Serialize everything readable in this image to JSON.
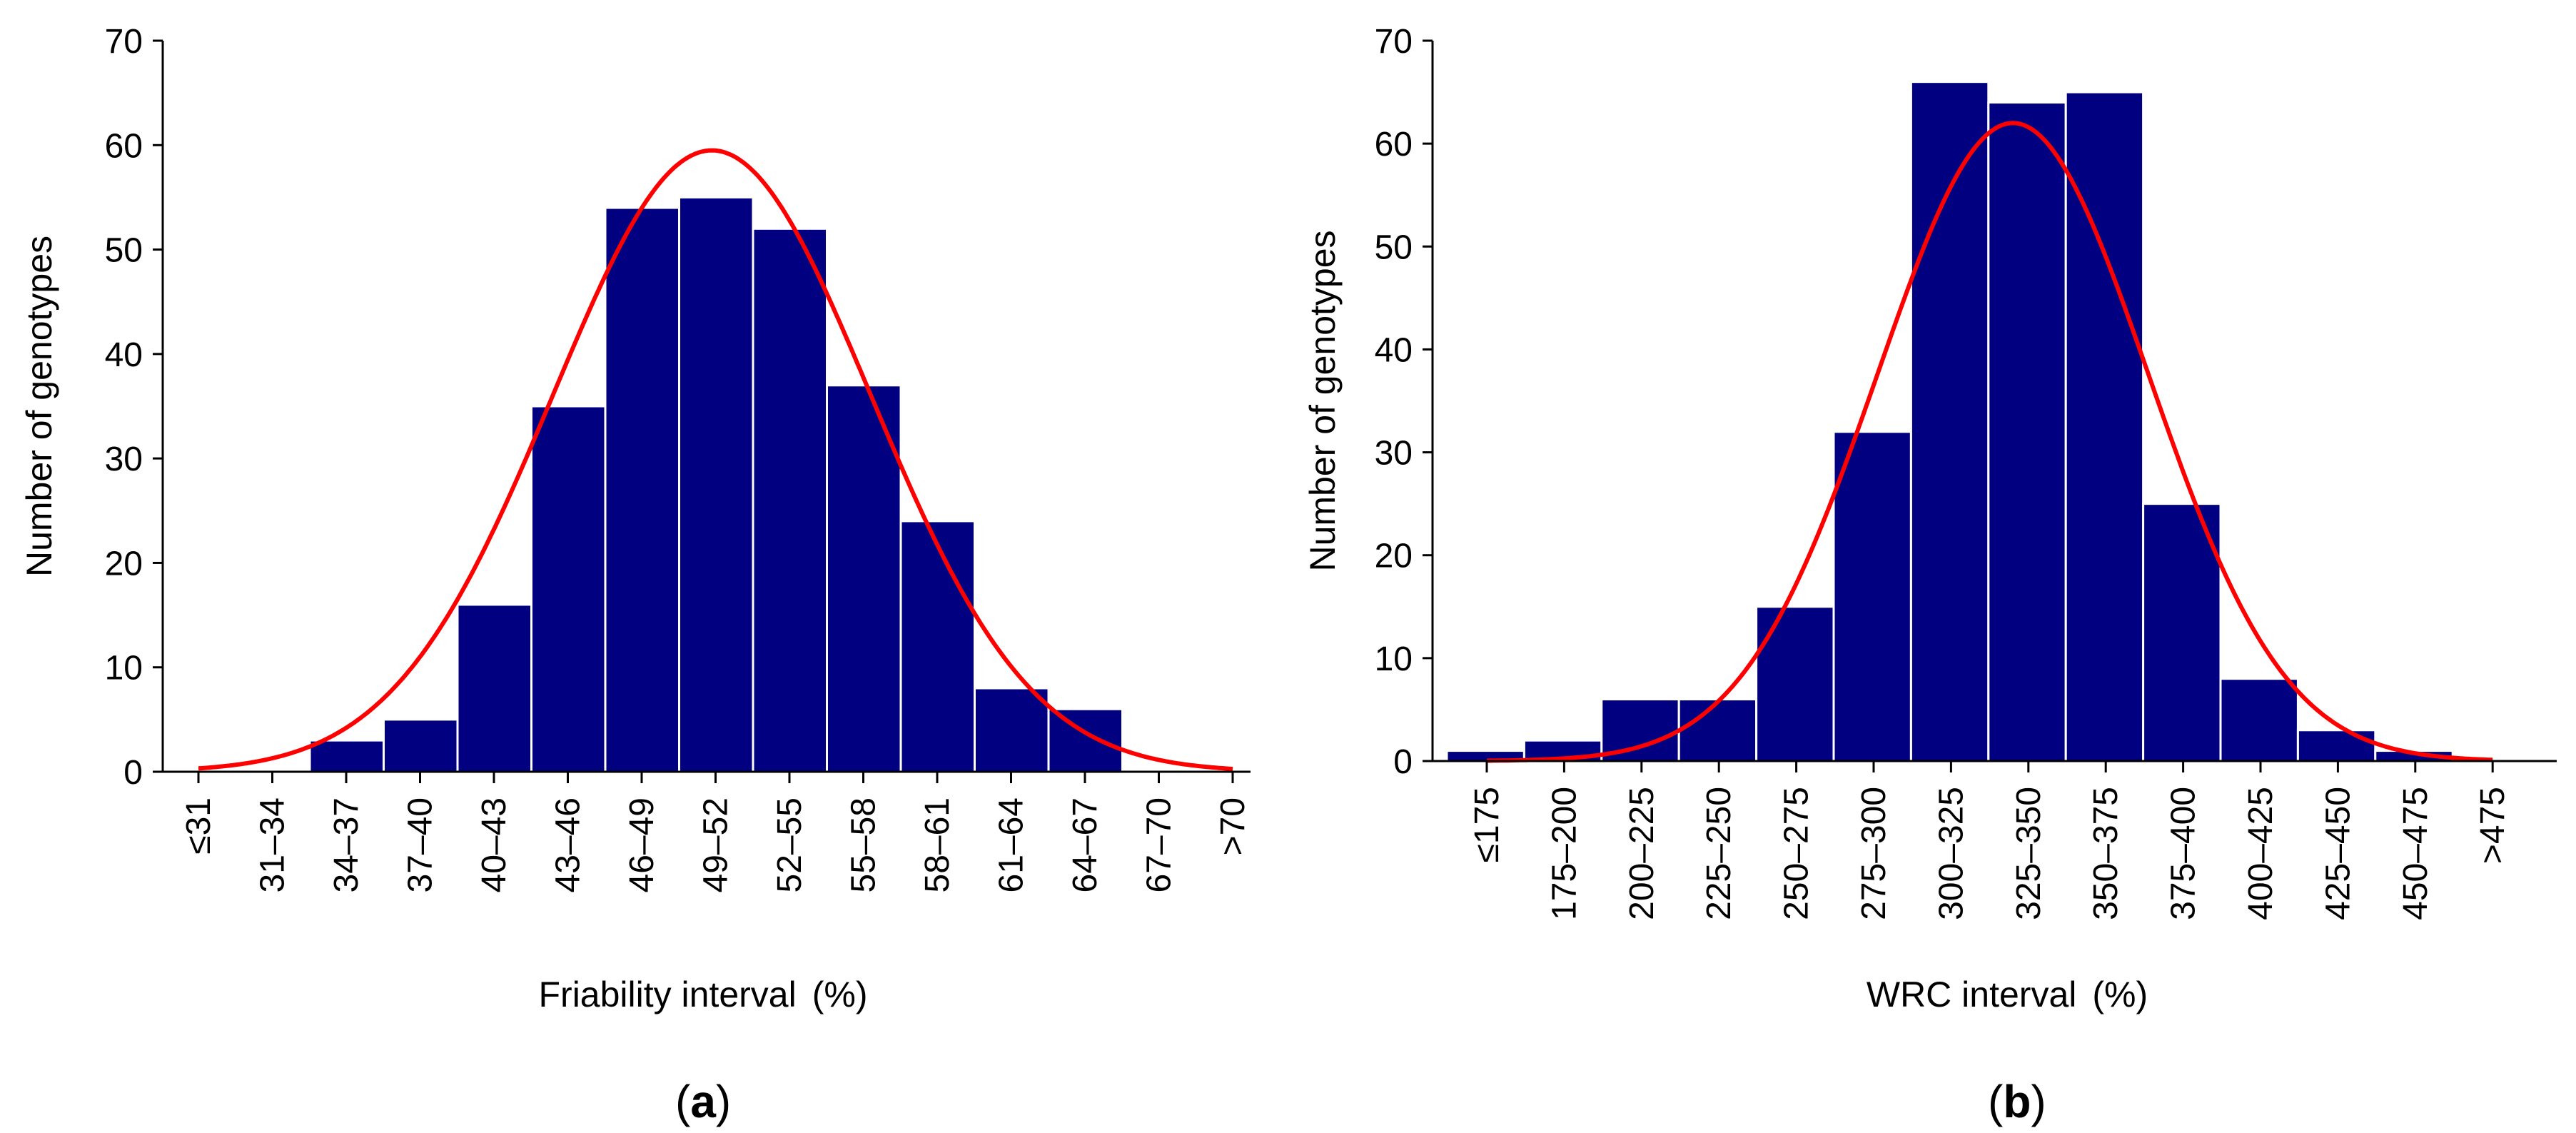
{
  "chart_data": [
    {
      "type": "bar",
      "panel_label": "a",
      "xlabel": "Friability interval",
      "xlabel_unit": "(%)",
      "ylabel": "Number of genotypes",
      "ylim": [
        0,
        70
      ],
      "yticks": [
        "0",
        "10",
        "20",
        "30",
        "40",
        "50",
        "60",
        "70"
      ],
      "categories": [
        "≤31",
        "31–34",
        "34–37",
        "37–40",
        "40–43",
        "43–46",
        "46–49",
        "49–52",
        "52–55",
        "55–58",
        "58–61",
        "61–64",
        "64–67",
        "67–70",
        ">70"
      ],
      "values": [
        0,
        0,
        3,
        5,
        16,
        35,
        54,
        55,
        52,
        37,
        24,
        8,
        6,
        0,
        0
      ],
      "fit_curve": {
        "type": "normal",
        "peak": 59.5,
        "mean_category_index": 6.95,
        "sd_categories": 2.15,
        "color": "#ff0000"
      },
      "bar_color": "#000080",
      "legend": "none",
      "grid": false
    },
    {
      "type": "bar",
      "panel_label": "b",
      "xlabel": "WRC interval",
      "xlabel_unit": "(%)",
      "ylabel": "Number of genotypes",
      "ylim": [
        0,
        70
      ],
      "yticks": [
        "0",
        "10",
        "20",
        "30",
        "40",
        "50",
        "60",
        "70"
      ],
      "categories": [
        "≤175",
        "175–200",
        "200–225",
        "225–250",
        "250–275",
        "275–300",
        "300–325",
        "325–350",
        "350–375",
        "375–400",
        "400–425",
        "425–450",
        "450–475",
        ">475"
      ],
      "values": [
        1,
        2,
        6,
        6,
        15,
        32,
        66,
        64,
        65,
        25,
        8,
        3,
        1,
        0
      ],
      "fit_curve": {
        "type": "normal",
        "peak": 62,
        "mean_category_index": 6.8,
        "sd_categories": 1.75,
        "color": "#ff0000"
      },
      "bar_color": "#000080",
      "legend": "none",
      "grid": false
    }
  ]
}
